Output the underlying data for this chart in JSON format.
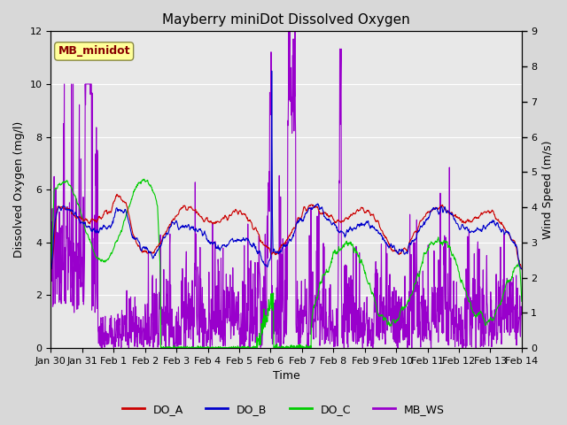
{
  "title": "Mayberry miniDot Dissolved Oxygen",
  "xlabel": "Time",
  "ylabel_left": "Dissolved Oxygen (mg/l)",
  "ylabel_right": "Wind Speed (m/s)",
  "station_label": "MB_minidot",
  "ylim_left": [
    0,
    12
  ],
  "ylim_right": [
    0,
    9
  ],
  "yticks_left": [
    0,
    2,
    4,
    6,
    8,
    10,
    12
  ],
  "yticks_right": [
    0.0,
    1.0,
    2.0,
    3.0,
    4.0,
    5.0,
    6.0,
    7.0,
    8.0,
    9.0
  ],
  "xtick_labels": [
    "Jan 30",
    "Jan 31",
    "Feb 1",
    "Feb 2",
    "Feb 3",
    "Feb 4",
    "Feb 5",
    "Feb 6",
    "Feb 7",
    "Feb 8",
    "Feb 9",
    "Feb 10",
    "Feb 11",
    "Feb 12",
    "Feb 13",
    "Feb 14"
  ],
  "color_DO_A": "#cc0000",
  "color_DO_B": "#0000cc",
  "color_DO_C": "#00cc00",
  "color_MB_WS": "#9900cc",
  "bg_color": "#d8d8d8",
  "inner_bg_color": "#e8e8e8",
  "station_box_facecolor": "#ffff99",
  "station_text_color": "#880000",
  "grid_color": "#ffffff",
  "title_fontsize": 11,
  "axis_label_fontsize": 9,
  "tick_fontsize": 8,
  "lw": 0.8
}
